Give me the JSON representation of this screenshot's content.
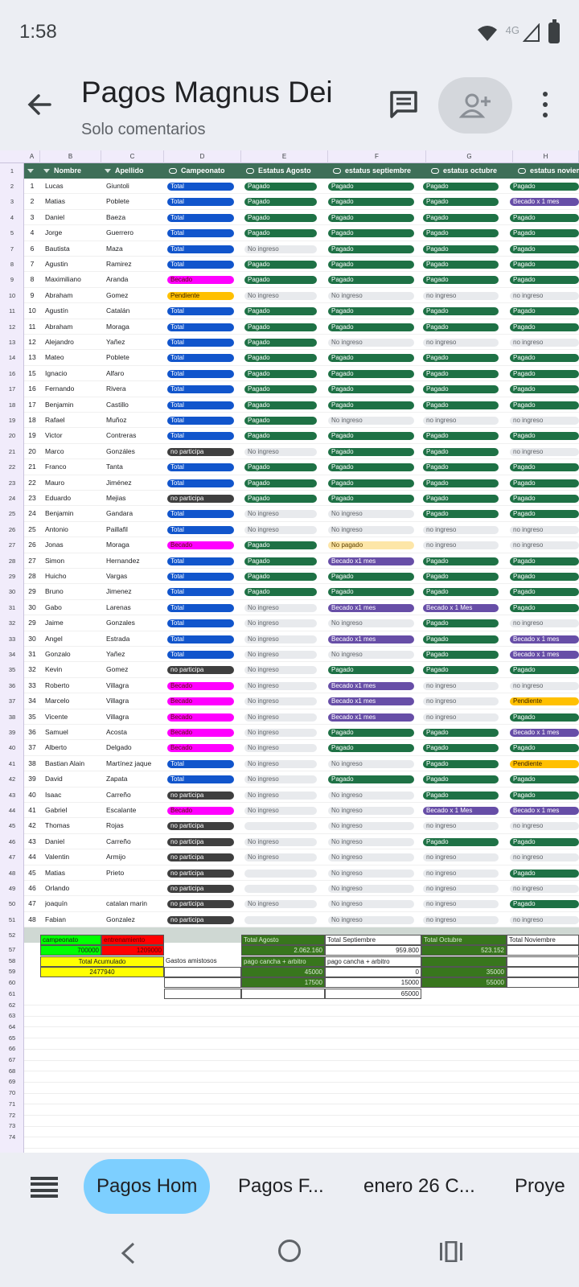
{
  "status": {
    "time": "1:58",
    "network": "4G"
  },
  "appbar": {
    "title": "Pagos Magnus Dei",
    "subtitle": "Solo comentarios"
  },
  "columns": [
    "A",
    "B",
    "C",
    "D",
    "E",
    "F",
    "G",
    "H"
  ],
  "header": {
    "nombre": "Nombre",
    "apellido": "Apellido",
    "campeonato": "Campeonato",
    "agosto": "Estatus Agosto",
    "septiembre": "estatus septiembre",
    "octubre": "estatus octubre",
    "noviembre": "estatus noviembre"
  },
  "rows": [
    {
      "rn": "2",
      "n": "1",
      "nombre": "Lucas",
      "apellido": "Giuntoli",
      "camp": "Total",
      "ago": "Pagado",
      "sep": "Pagado",
      "oct": "Pagado",
      "nov": "Pagado"
    },
    {
      "rn": "3",
      "n": "2",
      "nombre": "Matias",
      "apellido": "Poblete",
      "camp": "Total",
      "ago": "Pagado",
      "sep": "Pagado",
      "oct": "Pagado",
      "nov": "Becado x 1 mes"
    },
    {
      "rn": "4",
      "n": "3",
      "nombre": "Daniel",
      "apellido": "Baeza",
      "camp": "Total",
      "ago": "Pagado",
      "sep": "Pagado",
      "oct": "Pagado",
      "nov": "Pagado"
    },
    {
      "rn": "5",
      "n": "4",
      "nombre": "Jorge",
      "apellido": "Guerrero",
      "camp": "Total",
      "ago": "Pagado",
      "sep": "Pagado",
      "oct": "Pagado",
      "nov": "Pagado"
    },
    {
      "rn": "7",
      "n": "6",
      "nombre": "Bautista",
      "apellido": "Maza",
      "camp": "Total",
      "ago": "No ingreso",
      "sep": "Pagado",
      "oct": "Pagado",
      "nov": "Pagado"
    },
    {
      "rn": "8",
      "n": "7",
      "nombre": "Agustin",
      "apellido": "Ramirez",
      "camp": "Total",
      "ago": "Pagado",
      "sep": "Pagado",
      "oct": "Pagado",
      "nov": "Pagado"
    },
    {
      "rn": "9",
      "n": "8",
      "nombre": "Maximiliano",
      "apellido": "Aranda",
      "camp": "Becado",
      "ago": "Pagado",
      "sep": "Pagado",
      "oct": "Pagado",
      "nov": "Pagado"
    },
    {
      "rn": "10",
      "n": "9",
      "nombre": "Abraham",
      "apellido": "Gomez",
      "camp": "Pendiente",
      "ago": "No ingreso",
      "sep": "No ingreso",
      "oct": "no ingreso",
      "nov": "no ingreso"
    },
    {
      "rn": "11",
      "n": "10",
      "nombre": "Agustín",
      "apellido": "Catalán",
      "camp": "Total",
      "ago": "Pagado",
      "sep": "Pagado",
      "oct": "Pagado",
      "nov": "Pagado"
    },
    {
      "rn": "12",
      "n": "11",
      "nombre": "Abraham",
      "apellido": "Moraga",
      "camp": "Total",
      "ago": "Pagado",
      "sep": "Pagado",
      "oct": "Pagado",
      "nov": "Pagado"
    },
    {
      "rn": "13",
      "n": "12",
      "nombre": "Alejandro",
      "apellido": "Yañez",
      "camp": "Total",
      "ago": "Pagado",
      "sep": "No ingreso",
      "oct": "no ingreso",
      "nov": "no ingreso"
    },
    {
      "rn": "14",
      "n": "13",
      "nombre": "Mateo",
      "apellido": "Poblete",
      "camp": "Total",
      "ago": "Pagado",
      "sep": "Pagado",
      "oct": "Pagado",
      "nov": "Pagado"
    },
    {
      "rn": "16",
      "n": "15",
      "nombre": "Ignacio",
      "apellido": "Alfaro",
      "camp": "Total",
      "ago": "Pagado",
      "sep": "Pagado",
      "oct": "Pagado",
      "nov": "Pagado"
    },
    {
      "rn": "17",
      "n": "16",
      "nombre": "Fernando",
      "apellido": "Rivera",
      "camp": "Total",
      "ago": "Pagado",
      "sep": "Pagado",
      "oct": "Pagado",
      "nov": "Pagado"
    },
    {
      "rn": "18",
      "n": "17",
      "nombre": "Benjamin",
      "apellido": "Castillo",
      "camp": "Total",
      "ago": "Pagado",
      "sep": "Pagado",
      "oct": "Pagado",
      "nov": "Pagado"
    },
    {
      "rn": "19",
      "n": "18",
      "nombre": "Rafael",
      "apellido": "Muñoz",
      "camp": "Total",
      "ago": "Pagado",
      "sep": "No ingreso",
      "oct": "no ingreso",
      "nov": "no ingreso"
    },
    {
      "rn": "20",
      "n": "19",
      "nombre": "Victor",
      "apellido": "Contreras",
      "camp": "Total",
      "ago": "Pagado",
      "sep": "Pagado",
      "oct": "Pagado",
      "nov": "Pagado"
    },
    {
      "rn": "21",
      "n": "20",
      "nombre": "Marco",
      "apellido": "Gonzáles",
      "camp": "no participa",
      "ago": "No ingreso",
      "sep": "Pagado",
      "oct": "Pagado",
      "nov": "no ingreso"
    },
    {
      "rn": "22",
      "n": "21",
      "nombre": "Franco",
      "apellido": "Tanta",
      "camp": "Total",
      "ago": "Pagado",
      "sep": "Pagado",
      "oct": "Pagado",
      "nov": "Pagado"
    },
    {
      "rn": "23",
      "n": "22",
      "nombre": "Mauro",
      "apellido": "Jiménez",
      "camp": "Total",
      "ago": "Pagado",
      "sep": "Pagado",
      "oct": "Pagado",
      "nov": "Pagado"
    },
    {
      "rn": "24",
      "n": "23",
      "nombre": "Eduardo",
      "apellido": "Mejias",
      "camp": "no participa",
      "ago": "Pagado",
      "sep": "Pagado",
      "oct": "Pagado",
      "nov": "Pagado"
    },
    {
      "rn": "25",
      "n": "24",
      "nombre": "Benjamin",
      "apellido": "Gandara",
      "camp": "Total",
      "ago": "No ingreso",
      "sep": "No ingreso",
      "oct": "Pagado",
      "nov": "Pagado"
    },
    {
      "rn": "26",
      "n": "25",
      "nombre": "Antonio",
      "apellido": "Paillafil",
      "camp": "Total",
      "ago": "No ingreso",
      "sep": "No ingreso",
      "oct": "no ingreso",
      "nov": "no ingreso"
    },
    {
      "rn": "27",
      "n": "26",
      "nombre": "Jonas",
      "apellido": "Moraga",
      "camp": "Becado",
      "ago": "Pagado",
      "sep": "No pagado",
      "oct": "no ingreso",
      "nov": "no ingreso"
    },
    {
      "rn": "28",
      "n": "27",
      "nombre": "Simon",
      "apellido": "Hernandez",
      "camp": "Total",
      "ago": "Pagado",
      "sep": "Becado x1 mes",
      "oct": "Pagado",
      "nov": "Pagado"
    },
    {
      "rn": "29",
      "n": "28",
      "nombre": "Huicho",
      "apellido": "Vargas",
      "camp": "Total",
      "ago": "Pagado",
      "sep": "Pagado",
      "oct": "Pagado",
      "nov": "Pagado"
    },
    {
      "rn": "30",
      "n": "29",
      "nombre": "Bruno",
      "apellido": "Jimenez",
      "camp": "Total",
      "ago": "Pagado",
      "sep": "Pagado",
      "oct": "Pagado",
      "nov": "Pagado"
    },
    {
      "rn": "31",
      "n": "30",
      "nombre": "Gabo",
      "apellido": "Larenas",
      "camp": "Total",
      "ago": "No ingreso",
      "sep": "Becado x1 mes",
      "oct": "Becado x 1 Mes",
      "nov": "Pagado"
    },
    {
      "rn": "32",
      "n": "29",
      "nombre": "Jaime",
      "apellido": "Gonzales",
      "camp": "Total",
      "ago": "No ingreso",
      "sep": "No ingreso",
      "oct": "Pagado",
      "nov": "no ingreso"
    },
    {
      "rn": "33",
      "n": "30",
      "nombre": "Angel",
      "apellido": "Estrada",
      "camp": "Total",
      "ago": "No ingreso",
      "sep": "Becado x1 mes",
      "oct": "Pagado",
      "nov": "Becado x 1 mes"
    },
    {
      "rn": "34",
      "n": "31",
      "nombre": "Gonzalo",
      "apellido": "Yañez",
      "camp": "Total",
      "ago": "No ingreso",
      "sep": "No ingreso",
      "oct": "Pagado",
      "nov": "Becado x 1 mes"
    },
    {
      "rn": "35",
      "n": "32",
      "nombre": "Kevin",
      "apellido": "Gomez",
      "camp": "no participa",
      "ago": "No ingreso",
      "sep": "Pagado",
      "oct": "Pagado",
      "nov": "Pagado"
    },
    {
      "rn": "36",
      "n": "33",
      "nombre": "Roberto",
      "apellido": "Villagra",
      "camp": "Becado",
      "ago": "No ingreso",
      "sep": "Becado x1 mes",
      "oct": "no ingreso",
      "nov": "no ingreso"
    },
    {
      "rn": "37",
      "n": "34",
      "nombre": "Marcelo",
      "apellido": "Villagra",
      "camp": "Becado",
      "ago": "No ingreso",
      "sep": "Becado x1 mes",
      "oct": "no ingreso",
      "nov": "Pendiente"
    },
    {
      "rn": "38",
      "n": "35",
      "nombre": "Vicente",
      "apellido": "Villagra",
      "camp": "Becado",
      "ago": "No ingreso",
      "sep": "Becado x1 mes",
      "oct": "no ingreso",
      "nov": "Pagado"
    },
    {
      "rn": "39",
      "n": "36",
      "nombre": "Samuel",
      "apellido": "Acosta",
      "camp": "Becado",
      "ago": "No ingreso",
      "sep": "Pagado",
      "oct": "Pagado",
      "nov": "Becado x 1 mes"
    },
    {
      "rn": "40",
      "n": "37",
      "nombre": "Alberto",
      "apellido": "Delgado",
      "camp": "Becado",
      "ago": "No ingreso",
      "sep": "Pagado",
      "oct": "Pagado",
      "nov": "Pagado"
    },
    {
      "rn": "41",
      "n": "38",
      "nombre": "Bastian Alain",
      "apellido": "Martínez jaque",
      "camp": "Total",
      "ago": "No ingreso",
      "sep": "No ingreso",
      "oct": "Pagado",
      "nov": "Pendiente"
    },
    {
      "rn": "42",
      "n": "39",
      "nombre": "David",
      "apellido": "Zapata",
      "camp": "Total",
      "ago": "No ingreso",
      "sep": "Pagado",
      "oct": "Pagado",
      "nov": "Pagado"
    },
    {
      "rn": "43",
      "n": "40",
      "nombre": "Isaac",
      "apellido": "Carreño",
      "camp": "no participa",
      "ago": "No ingreso",
      "sep": "No ingreso",
      "oct": "Pagado",
      "nov": "Pagado"
    },
    {
      "rn": "44",
      "n": "41",
      "nombre": "Gabriel",
      "apellido": "Escalante",
      "camp": "Becado",
      "ago": "No ingreso",
      "sep": "No ingreso",
      "oct": "Becado x 1 Mes",
      "nov": "Becado x 1 mes"
    },
    {
      "rn": "45",
      "n": "42",
      "nombre": "Thomas",
      "apellido": "Rojas",
      "camp": "no participa",
      "ago": "",
      "sep": "No ingreso",
      "oct": "no ingreso",
      "nov": "no ingreso"
    },
    {
      "rn": "46",
      "n": "43",
      "nombre": "Daniel",
      "apellido": "Carreño",
      "camp": "no participa",
      "ago": "No ingreso",
      "sep": "No ingreso",
      "oct": "Pagado",
      "nov": "Pagado"
    },
    {
      "rn": "47",
      "n": "44",
      "nombre": "Valentin",
      "apellido": "Armijo",
      "camp": "no participa",
      "ago": "No ingreso",
      "sep": "No ingreso",
      "oct": "no ingreso",
      "nov": "no ingreso"
    },
    {
      "rn": "48",
      "n": "45",
      "nombre": "Matias",
      "apellido": "Prieto",
      "camp": "no participa",
      "ago": "",
      "sep": "No ingreso",
      "oct": "no ingreso",
      "nov": "Pagado"
    },
    {
      "rn": "49",
      "n": "46",
      "nombre": "Orlando",
      "apellido": "",
      "camp": "no participa",
      "ago": "",
      "sep": "No ingreso",
      "oct": "no ingreso",
      "nov": "no ingreso"
    },
    {
      "rn": "50",
      "n": "47",
      "nombre": "joaquín",
      "apellido": "catalan marin",
      "camp": "no participa",
      "ago": "No ingreso",
      "sep": "No ingreso",
      "oct": "no ingreso",
      "nov": "Pagado"
    },
    {
      "rn": "51",
      "n": "48",
      "nombre": "Fabian",
      "apellido": "Gonzalez",
      "camp": "no participa",
      "ago": "",
      "sep": "No ingreso",
      "oct": "no ingreso",
      "nov": "no ingreso"
    }
  ],
  "extra_rownums": [
    "52",
    "57",
    "58",
    "59",
    "60",
    "61",
    "62",
    "63",
    "64",
    "65",
    "66",
    "67",
    "68",
    "69",
    "70",
    "71",
    "72",
    "73",
    "74"
  ],
  "summary": {
    "campeonato_label": "campeonato",
    "entrenamiento_label": "entrenamiento",
    "campeonato_val": "700000",
    "entrenamiento_val": "1209000",
    "acumulado_label": "Total Acumulado",
    "acumulado_val": "2477940",
    "gastos_label": "Gastos amistosos",
    "agosto_label": "Total Agosto",
    "agosto_val": "2.062.160",
    "agosto_cancha": "pago cancha + arbitro",
    "agosto_v1": "45000",
    "agosto_v2": "17500",
    "sept_label": "Total Septiembre",
    "sept_val": "959.800",
    "sept_cancha": "pago cancha + arbitro",
    "sept_v1": "0",
    "sept_v2": "15000",
    "sept_v3": "65000",
    "oct_label": "Total Octubre",
    "oct_val": "523.152",
    "oct_v1": "35000",
    "oct_v2": "55000",
    "nov_label": "Total Noviembre"
  },
  "tabs": [
    "Pagos Hom",
    "Pagos F...",
    "enero 26 C...",
    "Proye"
  ],
  "colors": {
    "total": "#1155cc",
    "pagado": "#1e7145",
    "becado": "#ff00ff",
    "pendiente": "#ffc000",
    "no_participa": "#3f3f3f",
    "becado_mes": "#674ea7",
    "header_bg": "#3e6f58",
    "active_tab": "#7dcfff"
  }
}
